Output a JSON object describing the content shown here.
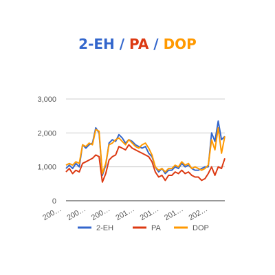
{
  "chart_data": {
    "type": "line",
    "title_parts": [
      {
        "text": "2-EH",
        "color": "#3366CC"
      },
      {
        "text": " / ",
        "color": "#3366CC"
      },
      {
        "text": "PA",
        "color": "#DC3912"
      },
      {
        "text": " / ",
        "color": "#3366CC"
      },
      {
        "text": "DOP",
        "color": "#FF9900"
      }
    ],
    "xlabel": "",
    "ylabel": "",
    "ylim": [
      0,
      3000
    ],
    "yticks": [
      "0",
      "1,000",
      "2,000",
      "3,000"
    ],
    "yticks_values": [
      0,
      1000,
      2000,
      3000
    ],
    "xtick_labels": [
      "200…",
      "200…",
      "200…",
      "201…",
      "201…",
      "201…",
      "202…"
    ],
    "grid": true,
    "legend_position": "bottom",
    "x": [
      0,
      1,
      2,
      3,
      4,
      5,
      6,
      7,
      8,
      9,
      10,
      11,
      12,
      13,
      14,
      15,
      16,
      17,
      18,
      19,
      20,
      21,
      22,
      23,
      24,
      25,
      26,
      27,
      28,
      29,
      30,
      31,
      32,
      33,
      34,
      35,
      36,
      37,
      38,
      39,
      40,
      41,
      42,
      43,
      44,
      45,
      46,
      47,
      48
    ],
    "series": [
      {
        "name": "2-EH",
        "color": "#3366CC",
        "values": [
          950,
          1050,
          950,
          1100,
          1000,
          1650,
          1550,
          1650,
          1700,
          2150,
          2000,
          750,
          1050,
          1700,
          1800,
          1750,
          1950,
          1850,
          1700,
          1800,
          1750,
          1650,
          1600,
          1550,
          1600,
          1400,
          1300,
          1000,
          850,
          950,
          800,
          900,
          900,
          1000,
          950,
          1100,
          1000,
          1050,
          950,
          900,
          900,
          950,
          1000,
          1000,
          2000,
          1750,
          2350,
          1800,
          1900
        ]
      },
      {
        "name": "PA",
        "color": "#DC3912",
        "values": [
          850,
          950,
          800,
          900,
          850,
          1100,
          1150,
          1200,
          1250,
          1350,
          1300,
          550,
          800,
          1200,
          1300,
          1350,
          1600,
          1550,
          1500,
          1650,
          1550,
          1500,
          1450,
          1400,
          1350,
          1300,
          1150,
          850,
          700,
          750,
          600,
          750,
          750,
          850,
          800,
          900,
          800,
          850,
          750,
          700,
          700,
          600,
          650,
          800,
          1000,
          750,
          1000,
          950,
          1250
        ]
      },
      {
        "name": "DOP",
        "color": "#FF9900",
        "values": [
          1050,
          1100,
          1050,
          1150,
          1100,
          1650,
          1600,
          1700,
          1650,
          2100,
          2050,
          800,
          1100,
          1650,
          1700,
          1800,
          1850,
          1750,
          1650,
          1800,
          1700,
          1600,
          1550,
          1650,
          1700,
          1550,
          1350,
          1000,
          900,
          950,
          850,
          950,
          950,
          1050,
          1000,
          1150,
          1050,
          1100,
          950,
          1000,
          950,
          900,
          950,
          1050,
          1800,
          1500,
          2150,
          1400,
          1900
        ]
      }
    ]
  }
}
